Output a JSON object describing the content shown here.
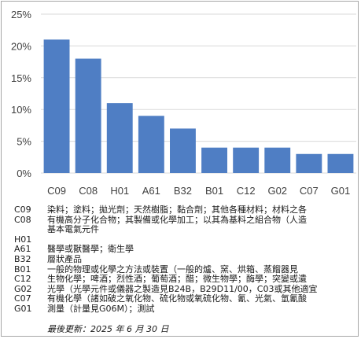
{
  "chart_data": {
    "type": "bar",
    "categories": [
      "C09",
      "C08",
      "H01",
      "A61",
      "B32",
      "B01",
      "C12",
      "G02",
      "C07",
      "G01"
    ],
    "values": [
      21,
      18,
      11,
      9,
      7,
      4,
      4,
      4,
      3,
      3
    ],
    "ylim": [
      0,
      25
    ],
    "yticks": [
      "0%",
      "5%",
      "10%",
      "15%",
      "20%",
      "25%"
    ],
    "grid": true,
    "bar_color": "#4f7ec4",
    "grid_color": "#d9d9d9"
  },
  "legend": [
    {
      "code": "C09",
      "lines": [
        "染料；塗料；拋光劑；天然樹脂；黏合劑；其他各種材料；材料之各"
      ]
    },
    {
      "code": "C08",
      "lines": [
        "有機高分子化合物；其製備或化學加工；以其為基料之組合物（人造",
        "基本電氣元件"
      ]
    },
    {
      "code": "H01",
      "lines": []
    },
    {
      "code": "A61",
      "lines": [
        "醫學或獸醫學；衛生學"
      ]
    },
    {
      "code": "B32",
      "lines": [
        "層狀產品"
      ]
    },
    {
      "code": "B01",
      "lines": [
        "一般的物理或化學之方法或裝置（一般的爐、窯、烘箱、蒸餾器見"
      ]
    },
    {
      "code": "C12",
      "lines": [
        "生物化學；啤酒；烈性酒；葡萄酒；醋；微生物學；酶學；突變或遺"
      ]
    },
    {
      "code": "G02",
      "lines": [
        "光學（光學元件或儀器之製造見B24B，B29D11/00，C03或其他適宜"
      ]
    },
    {
      "code": "C07",
      "lines": [
        "有機化學（諸如破之氧化物、硫化物或氧硫化物、氰、光氣、氫氰酸"
      ]
    },
    {
      "code": "G01",
      "lines": [
        "測量（計量見G06M）；測試"
      ]
    }
  ],
  "updated": "最後更新：2025 年 6 月 30 日"
}
